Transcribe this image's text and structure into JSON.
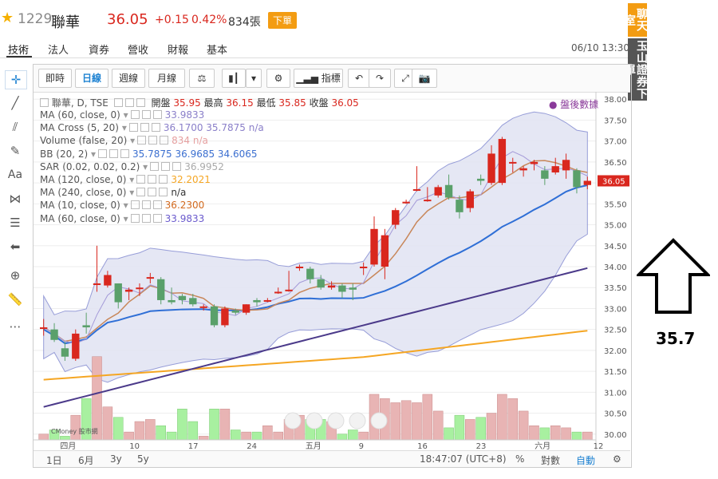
{
  "quote": {
    "code": "1229",
    "name": "聯華",
    "price": "36.05",
    "change": "+0.15",
    "change_pct": "0.42%",
    "volume": "834張",
    "order_label": "下單"
  },
  "tabs": [
    {
      "label": "技術"
    },
    {
      "label": "法人"
    },
    {
      "label": "資券"
    },
    {
      "label": "營收"
    },
    {
      "label": "財報"
    },
    {
      "label": "基本"
    }
  ],
  "datetime": "06/10 13:30",
  "banners": {
    "chat": "聊天室",
    "bank": "玉山證券下單"
  },
  "toolbar": {
    "intraday": "即時",
    "daily": "日線",
    "weekly": "週線",
    "monthly": "月線",
    "indicators": "指標"
  },
  "legend": {
    "main": {
      "name": "聯華, D, TSE",
      "open_label": "開盤",
      "open": "35.95",
      "high_label": "最高",
      "high": "36.15",
      "low_label": "最低",
      "low": "35.85",
      "close_label": "收盤",
      "close": "36.05"
    },
    "rows": [
      {
        "name": "MA (60, close, 0)",
        "value": "33.9833",
        "color": "#8a7fc9"
      },
      {
        "name": "MA Cross (5, 20)",
        "value": "36.1700 35.7875 n/a",
        "color": "#8a7fc9"
      },
      {
        "name": "Volume (false, 20)",
        "value": "834 n/a",
        "color": "#e6a0a0"
      },
      {
        "name": "BB (20, 2)",
        "value": "35.7875 36.9685 34.6065",
        "color": "#3b6fd0"
      },
      {
        "name": "SAR (0.02, 0.02, 0.2)",
        "value": "36.9952",
        "color": "#aaaaaa"
      },
      {
        "name": "MA (120, close, 0)",
        "value": "32.2021",
        "color": "#f5a623"
      },
      {
        "name": "MA (240, close, 0)",
        "value": "n/a",
        "color": "#333333"
      },
      {
        "name": "MA (10, close, 0)",
        "value": "36.2300",
        "color": "#d2691e"
      },
      {
        "name": "MA (60, close, 0)",
        "value": "33.9833",
        "color": "#6a5acd"
      }
    ]
  },
  "after_hours": "盤後數據",
  "price_axis": [
    "38.00",
    "37.50",
    "37.00",
    "36.50",
    "36.00",
    "35.50",
    "35.00",
    "34.50",
    "34.00",
    "33.50",
    "33.00",
    "32.50",
    "32.00",
    "31.50",
    "31.00",
    "30.50",
    "30.00"
  ],
  "price_tag": "36.05",
  "date_axis": [
    "四月",
    "10",
    "17",
    "24",
    "五月",
    "9",
    "16",
    "23",
    "六月",
    "12"
  ],
  "bottombar": {
    "r1d": "1日",
    "r6m": "6月",
    "r3y": "3y",
    "r5y": "5y",
    "time": "18:47:07 (UTC+8)",
    "pct": "%",
    "log": "對數",
    "auto": "自動"
  },
  "watermark": "CMoney 股市網",
  "annotation": {
    "value": "35.7"
  },
  "colors": {
    "up": "#d9271e",
    "down": "#5aa06a",
    "accent": "#f39c12",
    "bb_fill": "#e3e5f3",
    "ma_blue": "#2f6fd6",
    "ma_purple": "#4b3a8a",
    "ma_orange": "#f5a623",
    "ma_brown": "#c8875a"
  },
  "chart_data": {
    "type": "candlestick",
    "ylim": [
      29.9,
      38.1
    ],
    "candles": [
      {
        "o": 32.55,
        "h": 32.75,
        "l": 32.35,
        "c": 32.55
      },
      {
        "o": 32.5,
        "h": 32.65,
        "l": 32.2,
        "c": 32.25
      },
      {
        "o": 32.05,
        "h": 32.2,
        "l": 31.75,
        "c": 31.85
      },
      {
        "o": 31.8,
        "h": 32.5,
        "l": 31.75,
        "c": 32.4
      },
      {
        "o": 32.6,
        "h": 32.9,
        "l": 32.4,
        "c": 32.55
      },
      {
        "o": 33.6,
        "h": 34.5,
        "l": 33.4,
        "c": 33.6
      },
      {
        "o": 33.55,
        "h": 33.9,
        "l": 33.5,
        "c": 33.8
      },
      {
        "o": 33.6,
        "h": 33.6,
        "l": 33.0,
        "c": 33.15
      },
      {
        "o": 33.4,
        "h": 33.5,
        "l": 33.2,
        "c": 33.45
      },
      {
        "o": 33.5,
        "h": 33.6,
        "l": 33.3,
        "c": 33.5
      },
      {
        "o": 33.75,
        "h": 33.85,
        "l": 33.6,
        "c": 33.75
      },
      {
        "o": 33.7,
        "h": 33.75,
        "l": 33.1,
        "c": 33.2
      },
      {
        "o": 33.2,
        "h": 33.5,
        "l": 33.1,
        "c": 33.15
      },
      {
        "o": 33.3,
        "h": 33.35,
        "l": 33.1,
        "c": 33.2
      },
      {
        "o": 33.25,
        "h": 33.35,
        "l": 33.05,
        "c": 33.1
      },
      {
        "o": 33.05,
        "h": 33.1,
        "l": 32.95,
        "c": 33.05
      },
      {
        "o": 33.05,
        "h": 33.1,
        "l": 32.55,
        "c": 32.6
      },
      {
        "o": 32.6,
        "h": 33.05,
        "l": 32.55,
        "c": 33.0
      },
      {
        "o": 32.95,
        "h": 33.0,
        "l": 32.85,
        "c": 32.9
      },
      {
        "o": 32.9,
        "h": 33.1,
        "l": 32.85,
        "c": 33.1
      },
      {
        "o": 33.2,
        "h": 33.25,
        "l": 33.05,
        "c": 33.15
      },
      {
        "o": 33.2,
        "h": 33.25,
        "l": 33.15,
        "c": 33.2
      },
      {
        "o": 33.4,
        "h": 33.5,
        "l": 33.35,
        "c": 33.4
      },
      {
        "o": 33.45,
        "h": 33.9,
        "l": 33.4,
        "c": 33.45
      },
      {
        "o": 34.0,
        "h": 34.05,
        "l": 33.9,
        "c": 34.0
      },
      {
        "o": 33.95,
        "h": 34.0,
        "l": 33.6,
        "c": 33.7
      },
      {
        "o": 33.7,
        "h": 33.8,
        "l": 33.45,
        "c": 33.5
      },
      {
        "o": 33.5,
        "h": 33.65,
        "l": 33.45,
        "c": 33.55
      },
      {
        "o": 33.55,
        "h": 33.6,
        "l": 33.25,
        "c": 33.4
      },
      {
        "o": 33.5,
        "h": 33.6,
        "l": 33.2,
        "c": 33.45
      },
      {
        "o": 34.0,
        "h": 34.1,
        "l": 33.8,
        "c": 34.0
      },
      {
        "o": 34.05,
        "h": 35.2,
        "l": 34.0,
        "c": 34.9
      },
      {
        "o": 34.0,
        "h": 34.9,
        "l": 33.7,
        "c": 34.75
      },
      {
        "o": 35.0,
        "h": 35.4,
        "l": 34.9,
        "c": 35.35
      },
      {
        "o": 35.55,
        "h": 35.6,
        "l": 35.5,
        "c": 35.55
      },
      {
        "o": 35.85,
        "h": 36.4,
        "l": 35.8,
        "c": 35.85
      },
      {
        "o": 35.6,
        "h": 35.9,
        "l": 35.55,
        "c": 35.6
      },
      {
        "o": 35.7,
        "h": 35.95,
        "l": 35.65,
        "c": 35.9
      },
      {
        "o": 35.95,
        "h": 36.2,
        "l": 35.6,
        "c": 35.65
      },
      {
        "o": 35.6,
        "h": 35.7,
        "l": 35.15,
        "c": 35.3
      },
      {
        "o": 35.4,
        "h": 35.85,
        "l": 35.3,
        "c": 35.8
      },
      {
        "o": 36.1,
        "h": 36.2,
        "l": 35.95,
        "c": 36.05
      },
      {
        "o": 36.0,
        "h": 36.9,
        "l": 35.95,
        "c": 36.7
      },
      {
        "o": 36.0,
        "h": 37.1,
        "l": 35.95,
        "c": 37.05
      },
      {
        "o": 36.5,
        "h": 36.6,
        "l": 36.25,
        "c": 36.5
      },
      {
        "o": 36.3,
        "h": 36.4,
        "l": 36.15,
        "c": 36.35
      },
      {
        "o": 36.45,
        "h": 36.55,
        "l": 36.3,
        "c": 36.5
      },
      {
        "o": 36.3,
        "h": 36.4,
        "l": 35.95,
        "c": 36.1
      },
      {
        "o": 36.25,
        "h": 36.6,
        "l": 36.2,
        "c": 36.4
      },
      {
        "o": 36.3,
        "h": 36.7,
        "l": 36.1,
        "c": 36.55
      },
      {
        "o": 36.3,
        "h": 36.35,
        "l": 35.75,
        "c": 35.9
      },
      {
        "o": 35.95,
        "h": 36.15,
        "l": 35.85,
        "c": 36.05
      }
    ],
    "volume": [
      30.0,
      30.1,
      29.95,
      30.45,
      30.85,
      31.85,
      30.65,
      30.4,
      30.05,
      30.3,
      30.35,
      30.2,
      30.05,
      30.6,
      30.3,
      29.95,
      30.6,
      30.6,
      30.1,
      30.05,
      30.05,
      30.2,
      30.05,
      30.35,
      30.45,
      30.35,
      30.35,
      30.3,
      30.0,
      30.1,
      30.05,
      30.95,
      30.85,
      30.75,
      30.8,
      30.75,
      30.95,
      30.55,
      30.15,
      30.45,
      30.35,
      30.4,
      30.5,
      30.95,
      30.85,
      30.55,
      30.2,
      30.15,
      30.2,
      30.15,
      30.05,
      30.05
    ]
  }
}
